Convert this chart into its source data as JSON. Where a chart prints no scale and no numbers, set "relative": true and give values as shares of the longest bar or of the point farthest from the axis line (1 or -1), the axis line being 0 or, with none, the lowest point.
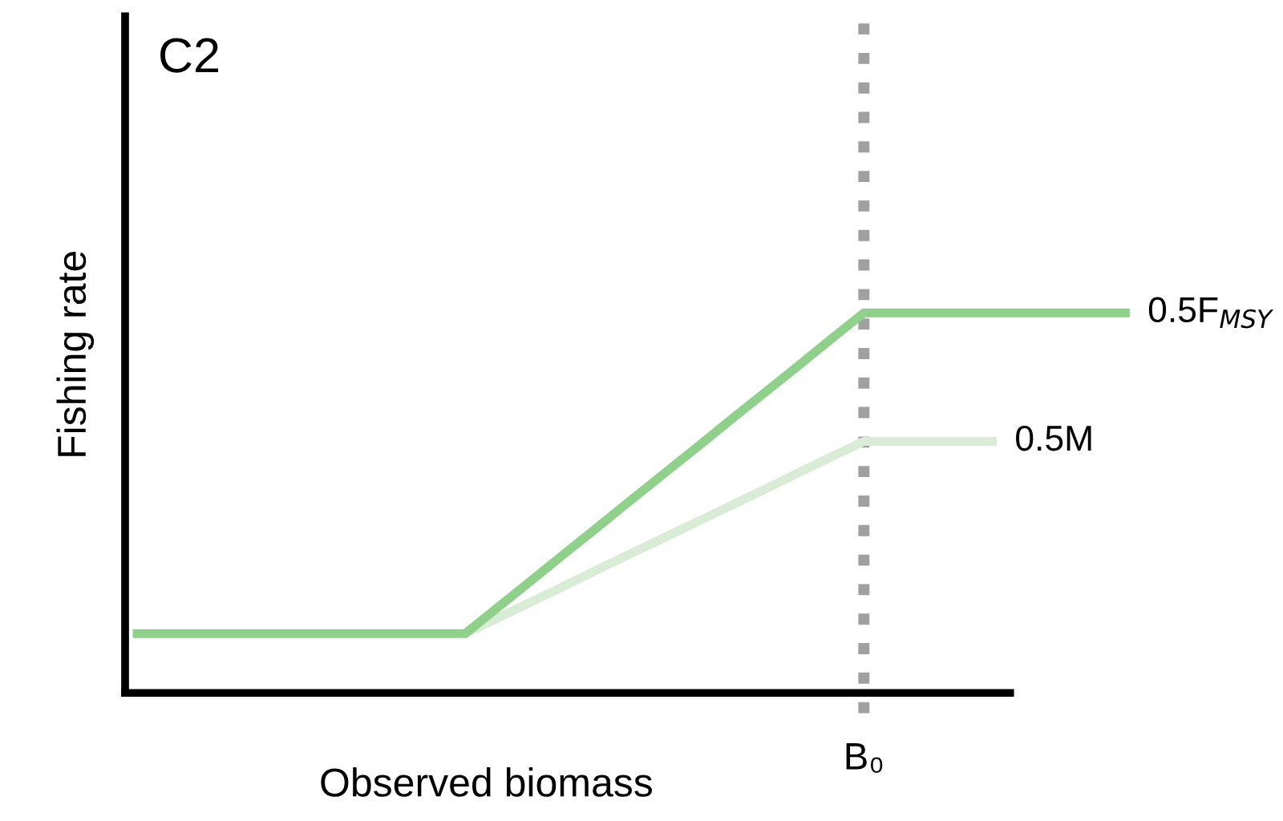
{
  "chart_data": {
    "type": "line",
    "title": "C2",
    "xlabel": "Observed biomass",
    "ylabel": "Fishing rate",
    "relative": true,
    "line_style": "solid",
    "categories": [
      null,
      null,
      null,
      null,
      null,
      null,
      null,
      null,
      null,
      null,
      null,
      null,
      null,
      null,
      null,
      null,
      null,
      null,
      null,
      null,
      null,
      null,
      null,
      null,
      null,
      null,
      null,
      null,
      null,
      null,
      null
    ],
    "series": [
      {
        "name": "0.5F$_{MSY}$",
        "color": "#8fd18a",
        "values": [
          0.156,
          0.156,
          0.156,
          0.156,
          0.156,
          0.156,
          0.156,
          0.156,
          0.156,
          0.156,
          0.156,
          0.226,
          0.296,
          0.367,
          0.437,
          0.508,
          0.578,
          0.648,
          0.719,
          0.789,
          0.859,
          0.93,
          1,
          1,
          1,
          1,
          1,
          1,
          1,
          1,
          1
        ]
      },
      {
        "name": "0.5M",
        "color": "#d9ecd5",
        "values": [
          null,
          null,
          null,
          null,
          null,
          null,
          null,
          null,
          null,
          null,
          0.156,
          0.198,
          0.24,
          0.282,
          0.325,
          0.367,
          0.409,
          0.451,
          0.493,
          0.535,
          0.578,
          0.62,
          0.662,
          0.662,
          0.662,
          0.662,
          0.662,
          null,
          null,
          null,
          null
        ]
      }
    ],
    "annotations": [
      "B₀"
    ]
  }
}
